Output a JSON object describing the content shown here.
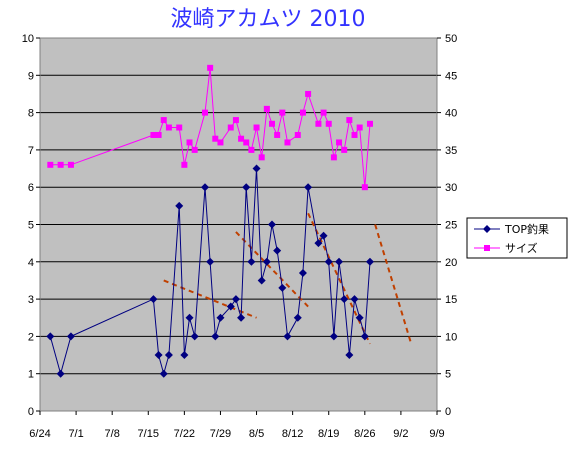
{
  "chart_data": {
    "type": "line",
    "title": "波崎アカムツ 2010",
    "title_color": "#3333ff",
    "plot_bg": "#c0c0c0",
    "grid": true,
    "legend_position": "right",
    "x_ticks": [
      "6/24",
      "7/1",
      "7/8",
      "7/15",
      "7/22",
      "7/29",
      "8/5",
      "8/12",
      "8/19",
      "8/26",
      "9/2",
      "9/9"
    ],
    "x_range_days": [
      0,
      77
    ],
    "y_left": {
      "min": 0,
      "max": 10,
      "step": 1,
      "ticks": [
        "0",
        "1",
        "2",
        "3",
        "4",
        "5",
        "6",
        "7",
        "8",
        "9",
        "10"
      ]
    },
    "y_right": {
      "min": 0,
      "max": 50,
      "step": 5,
      "ticks": [
        "0",
        "5",
        "10",
        "15",
        "20",
        "25",
        "30",
        "35",
        "40",
        "45",
        "50"
      ]
    },
    "series": [
      {
        "name": "TOP釣果",
        "axis": "left",
        "color": "#000080",
        "marker": "diamond",
        "points": [
          [
            2,
            2
          ],
          [
            4,
            1
          ],
          [
            6,
            2
          ],
          [
            22,
            3
          ],
          [
            23,
            1.5
          ],
          [
            24,
            1
          ],
          [
            25,
            1.5
          ],
          [
            27,
            5.5
          ],
          [
            28,
            1.5
          ],
          [
            29,
            2.5
          ],
          [
            30,
            2
          ],
          [
            32,
            6
          ],
          [
            33,
            4
          ],
          [
            34,
            2
          ],
          [
            35,
            2.5
          ],
          [
            37,
            2.8
          ],
          [
            38,
            3
          ],
          [
            39,
            2.5
          ],
          [
            40,
            6
          ],
          [
            41,
            4
          ],
          [
            42,
            6.5
          ],
          [
            43,
            3.5
          ],
          [
            44,
            4
          ],
          [
            45,
            5
          ],
          [
            46,
            4.3
          ],
          [
            47,
            3.3
          ],
          [
            48,
            2
          ],
          [
            50,
            2.5
          ],
          [
            51,
            3.7
          ],
          [
            52,
            6
          ],
          [
            54,
            4.5
          ],
          [
            55,
            4.7
          ],
          [
            56,
            4
          ],
          [
            57,
            2
          ],
          [
            58,
            4
          ],
          [
            59,
            3
          ],
          [
            60,
            1.5
          ],
          [
            61,
            3
          ],
          [
            62,
            2.5
          ],
          [
            63,
            2
          ],
          [
            64,
            4
          ]
        ]
      },
      {
        "name": "サイズ",
        "axis": "right",
        "color": "#ff00ff",
        "marker": "square",
        "points": [
          [
            2,
            33
          ],
          [
            4,
            33
          ],
          [
            6,
            33
          ],
          [
            22,
            37
          ],
          [
            23,
            37
          ],
          [
            24,
            39
          ],
          [
            25,
            38
          ],
          [
            27,
            38
          ],
          [
            28,
            33
          ],
          [
            29,
            36
          ],
          [
            30,
            35
          ],
          [
            32,
            40
          ],
          [
            33,
            46
          ],
          [
            34,
            36.5
          ],
          [
            35,
            36
          ],
          [
            37,
            38
          ],
          [
            38,
            39
          ],
          [
            39,
            36.5
          ],
          [
            40,
            36
          ],
          [
            41,
            35
          ],
          [
            42,
            38
          ],
          [
            43,
            34
          ],
          [
            44,
            40.5
          ],
          [
            45,
            38.5
          ],
          [
            46,
            37
          ],
          [
            47,
            40
          ],
          [
            48,
            36
          ],
          [
            50,
            37
          ],
          [
            51,
            40
          ],
          [
            52,
            42.5
          ],
          [
            54,
            38.5
          ],
          [
            55,
            40
          ],
          [
            56,
            38.5
          ],
          [
            57,
            34
          ],
          [
            58,
            36
          ],
          [
            59,
            35
          ],
          [
            60,
            39
          ],
          [
            61,
            37
          ],
          [
            62,
            38
          ],
          [
            63,
            30
          ],
          [
            64,
            38.5
          ]
        ]
      }
    ],
    "trendlines": [
      {
        "color": "#c04000",
        "from": [
          24,
          3.5
        ],
        "to": [
          42,
          2.5
        ]
      },
      {
        "color": "#c04000",
        "from": [
          38,
          4.8
        ],
        "to": [
          52,
          2.8
        ]
      },
      {
        "color": "#c04000",
        "from": [
          52,
          5.3
        ],
        "to": [
          64,
          1.8
        ]
      },
      {
        "color": "#c04000",
        "from": [
          65,
          5
        ],
        "to": [
          72,
          1.8
        ]
      }
    ]
  }
}
